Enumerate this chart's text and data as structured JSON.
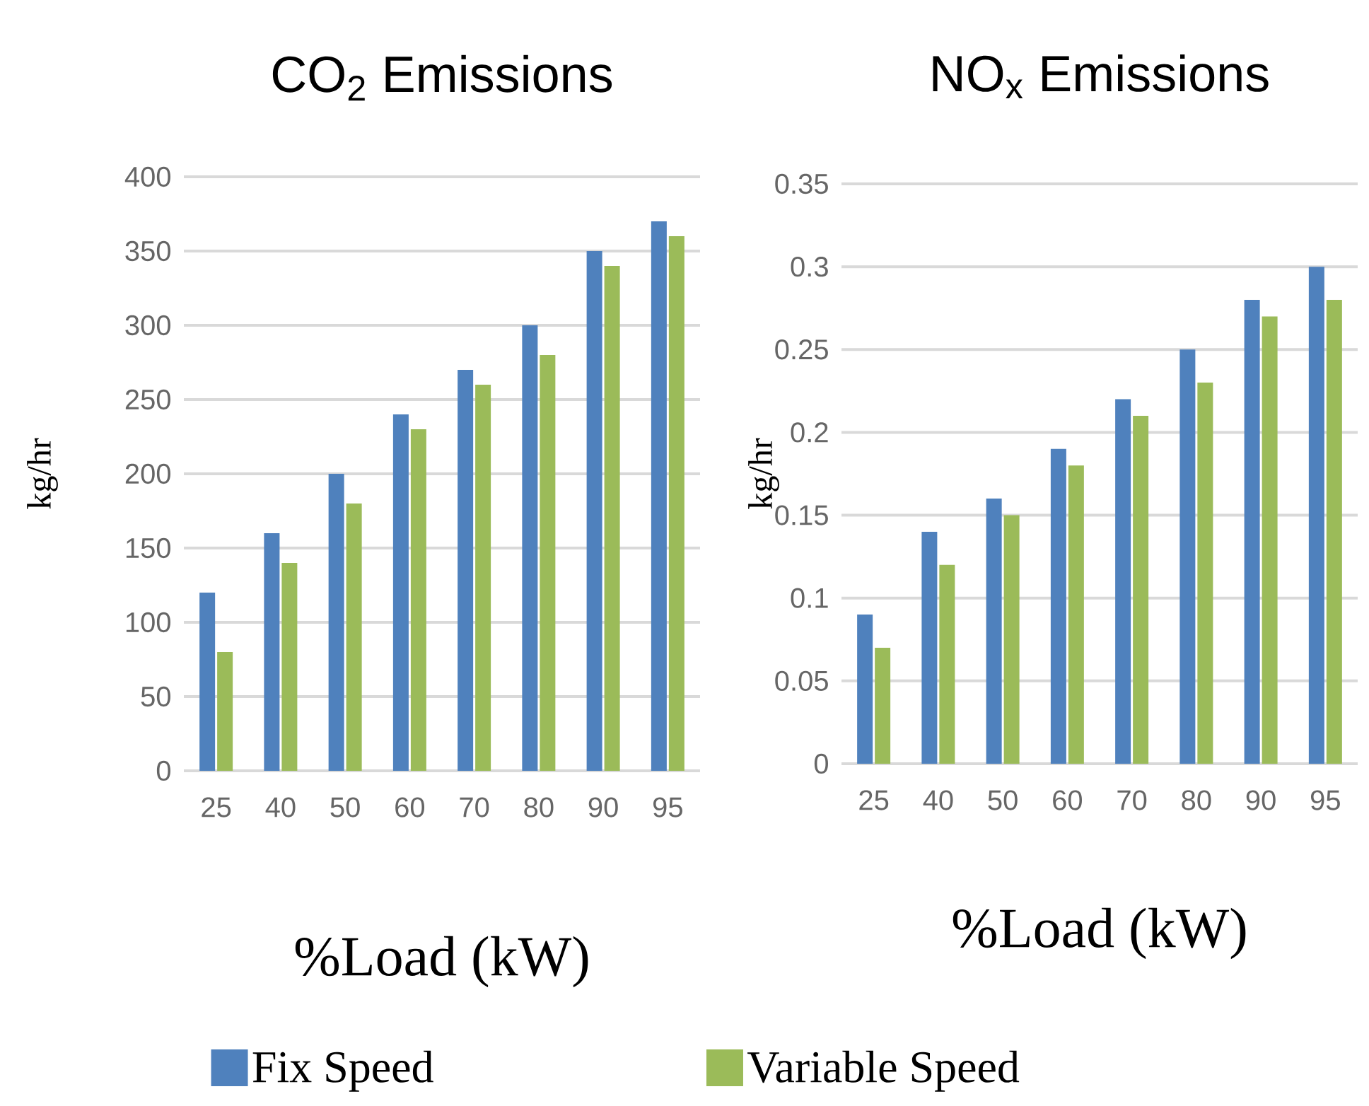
{
  "chart_data": [
    {
      "type": "bar",
      "title": "CO$_{2}$ Emissions",
      "xlabel": "%Load (kW)",
      "ylabel": "kg/hr",
      "categories": [
        "25",
        "40",
        "50",
        "60",
        "70",
        "80",
        "90",
        "95"
      ],
      "series": [
        {
          "name": "Fix Speed",
          "color": "#4f81bd",
          "values": [
            120,
            160,
            200,
            240,
            270,
            300,
            350,
            370
          ]
        },
        {
          "name": "Variable Speed",
          "color": "#9bbb59",
          "values": [
            80,
            140,
            180,
            230,
            260,
            280,
            340,
            360
          ]
        }
      ],
      "ylim": [
        0,
        400
      ],
      "yticks": [
        0,
        50,
        100,
        150,
        200,
        250,
        300,
        350,
        400
      ],
      "grid": "y",
      "legend": "bottom"
    },
    {
      "type": "bar",
      "title": "NO$_{x}$ Emissions",
      "xlabel": "%Load (kW)",
      "ylabel": "kg/hr",
      "categories": [
        "25",
        "40",
        "50",
        "60",
        "70",
        "80",
        "90",
        "95"
      ],
      "series": [
        {
          "color": "#4f81bd",
          "values": [
            0.09,
            0.14,
            0.16,
            0.19,
            0.22,
            0.25,
            0.28,
            0.3
          ]
        },
        {
          "color": "#9bbb59",
          "values": [
            0.07,
            0.12,
            0.15,
            0.18,
            0.21,
            0.23,
            0.27,
            0.28
          ]
        }
      ],
      "ylim": [
        0,
        0.35
      ],
      "yticks": [
        0,
        0.05,
        0.1,
        0.15,
        0.2,
        0.25,
        0.3,
        0.35
      ],
      "grid": "y"
    }
  ]
}
